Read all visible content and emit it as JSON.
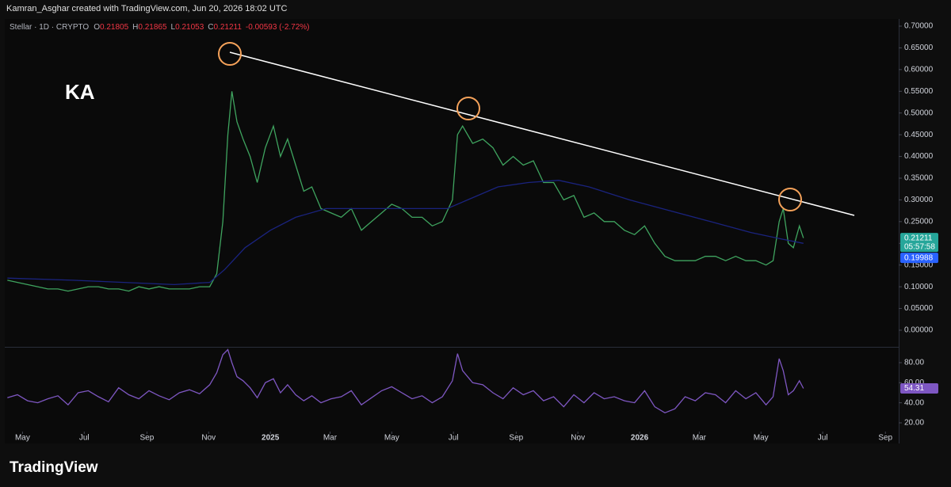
{
  "header": {
    "attribution": "Kamran_Asghar created with TradingView.com, Jun 20, 2026 18:02 UTC"
  },
  "legend": {
    "symbol": "Stellar · 1D · CRYPTO",
    "ohlc": [
      {
        "label": "O",
        "value": "0.21805"
      },
      {
        "label": "H",
        "value": "0.21865"
      },
      {
        "label": "L",
        "value": "0.21053"
      },
      {
        "label": "C",
        "value": "0.21211"
      }
    ],
    "change": "-0.00593 (-2.72%)"
  },
  "watermark": "KA",
  "footer": {
    "brand": "TradingView"
  },
  "chart_data": [
    {
      "type": "line",
      "xlim": [
        -16,
        863
      ],
      "ylim": [
        -0.0365,
        0.7146
      ],
      "yticks": [
        {
          "value": 0,
          "label": "0.00000"
        },
        {
          "value": 0.05,
          "label": "0.05000"
        },
        {
          "value": 0.1,
          "label": "0.10000"
        },
        {
          "value": 0.15,
          "label": "0.15000"
        },
        {
          "value": 0.2,
          "label": "0.20000"
        },
        {
          "value": 0.25,
          "label": "0.25000"
        },
        {
          "value": 0.3,
          "label": "0.30000"
        },
        {
          "value": 0.35,
          "label": "0.35000"
        },
        {
          "value": 0.4,
          "label": "0.40000"
        },
        {
          "value": 0.45,
          "label": "0.45000"
        },
        {
          "value": 0.5,
          "label": "0.50000"
        },
        {
          "value": 0.55,
          "label": "0.55000"
        },
        {
          "value": 0.6,
          "label": "0.60000"
        },
        {
          "value": 0.65,
          "label": "0.65000"
        },
        {
          "value": 0.7,
          "label": "0.70000"
        }
      ],
      "series": [
        {
          "color": "#3fa45f",
          "x": [
            -15,
            -5,
            5,
            15,
            25,
            35,
            45,
            55,
            65,
            75,
            85,
            95,
            105,
            115,
            125,
            135,
            145,
            155,
            165,
            175,
            185,
            192,
            198,
            203,
            207,
            212,
            218,
            225,
            232,
            240,
            248,
            255,
            262,
            270,
            278,
            286,
            295,
            305,
            315,
            325,
            335,
            345,
            355,
            365,
            375,
            385,
            395,
            405,
            415,
            425,
            430,
            435,
            445,
            455,
            465,
            475,
            485,
            495,
            505,
            515,
            525,
            535,
            545,
            555,
            565,
            575,
            585,
            595,
            605,
            615,
            625,
            635,
            645,
            655,
            665,
            675,
            685,
            695,
            705,
            715,
            725,
            735,
            742,
            748,
            752,
            757,
            762,
            768,
            772
          ],
          "values": [
            0.115,
            0.11,
            0.105,
            0.1,
            0.095,
            0.095,
            0.09,
            0.095,
            0.1,
            0.1,
            0.095,
            0.095,
            0.09,
            0.1,
            0.095,
            0.1,
            0.095,
            0.095,
            0.095,
            0.1,
            0.1,
            0.13,
            0.25,
            0.45,
            0.55,
            0.48,
            0.44,
            0.4,
            0.34,
            0.42,
            0.47,
            0.4,
            0.44,
            0.38,
            0.32,
            0.33,
            0.28,
            0.27,
            0.26,
            0.28,
            0.23,
            0.25,
            0.27,
            0.29,
            0.28,
            0.26,
            0.26,
            0.24,
            0.25,
            0.3,
            0.45,
            0.47,
            0.43,
            0.44,
            0.42,
            0.38,
            0.4,
            0.38,
            0.39,
            0.34,
            0.34,
            0.3,
            0.31,
            0.26,
            0.27,
            0.25,
            0.25,
            0.23,
            0.22,
            0.24,
            0.2,
            0.17,
            0.16,
            0.16,
            0.16,
            0.17,
            0.17,
            0.16,
            0.17,
            0.16,
            0.16,
            0.15,
            0.16,
            0.25,
            0.28,
            0.2,
            0.19,
            0.24,
            0.21211
          ]
        },
        {
          "color": "#1a237e",
          "x": [
            -15,
            50,
            100,
            150,
            185,
            200,
            220,
            245,
            270,
            300,
            340,
            380,
            420,
            440,
            470,
            500,
            530,
            560,
            600,
            640,
            680,
            720,
            750,
            772
          ],
          "values": [
            0.12,
            0.115,
            0.11,
            0.105,
            0.11,
            0.14,
            0.19,
            0.23,
            0.26,
            0.28,
            0.28,
            0.28,
            0.28,
            0.3,
            0.33,
            0.34,
            0.345,
            0.33,
            0.3,
            0.275,
            0.25,
            0.225,
            0.21,
            0.19988
          ]
        }
      ],
      "price_tags": [
        {
          "value": 0.21211,
          "label": "0.21211",
          "detail": "05:57:58",
          "color": "#26a69a"
        },
        {
          "value": 0.19988,
          "label": "0.19988",
          "color": "#2962ff"
        }
      ]
    },
    {
      "type": "line",
      "xlim": [
        -16,
        863
      ],
      "ylim": [
        11.3,
        94.2
      ],
      "yticks": [
        {
          "value": 20,
          "label": "20.00"
        },
        {
          "value": 40,
          "label": "40.00"
        },
        {
          "value": 60,
          "label": "60.00"
        },
        {
          "value": 80,
          "label": "80.00"
        }
      ],
      "xticks": [
        {
          "value": 0,
          "label": "May"
        },
        {
          "value": 61,
          "label": "Jul"
        },
        {
          "value": 123,
          "label": "Sep"
        },
        {
          "value": 184,
          "label": "Nov"
        },
        {
          "value": 245,
          "label": "2025"
        },
        {
          "value": 304,
          "label": "Mar"
        },
        {
          "value": 365,
          "label": "May"
        },
        {
          "value": 426,
          "label": "Jul"
        },
        {
          "value": 488,
          "label": "Sep"
        },
        {
          "value": 549,
          "label": "Nov"
        },
        {
          "value": 610,
          "label": "2026"
        },
        {
          "value": 669,
          "label": "Mar"
        },
        {
          "value": 730,
          "label": "May"
        },
        {
          "value": 791,
          "label": "Jul"
        },
        {
          "value": 853,
          "label": "Sep"
        }
      ],
      "series": [
        {
          "color": "#7e57c2",
          "x": [
            -15,
            -5,
            5,
            15,
            25,
            35,
            45,
            55,
            65,
            75,
            85,
            95,
            105,
            115,
            125,
            135,
            145,
            155,
            165,
            175,
            185,
            192,
            198,
            203,
            207,
            212,
            218,
            225,
            232,
            240,
            248,
            255,
            262,
            270,
            278,
            286,
            295,
            305,
            315,
            325,
            335,
            345,
            355,
            365,
            375,
            385,
            395,
            405,
            415,
            425,
            430,
            435,
            445,
            455,
            465,
            475,
            485,
            495,
            505,
            515,
            525,
            535,
            545,
            555,
            565,
            575,
            585,
            595,
            605,
            615,
            625,
            635,
            645,
            655,
            665,
            675,
            685,
            695,
            705,
            715,
            725,
            735,
            742,
            748,
            752,
            757,
            762,
            768,
            772
          ],
          "values": [
            45,
            48,
            42,
            40,
            44,
            47,
            38,
            50,
            52,
            46,
            41,
            55,
            48,
            44,
            52,
            47,
            43,
            50,
            53,
            49,
            58,
            70,
            88,
            93,
            80,
            66,
            62,
            55,
            45,
            60,
            64,
            50,
            58,
            48,
            42,
            47,
            40,
            44,
            46,
            52,
            38,
            45,
            52,
            56,
            50,
            44,
            47,
            40,
            46,
            62,
            89,
            72,
            60,
            58,
            50,
            44,
            55,
            48,
            52,
            42,
            46,
            36,
            48,
            40,
            50,
            44,
            46,
            42,
            40,
            52,
            36,
            30,
            34,
            46,
            42,
            50,
            48,
            40,
            52,
            44,
            50,
            38,
            46,
            84,
            72,
            48,
            52,
            62,
            54.31
          ]
        }
      ],
      "price_tags": [
        {
          "value": 54.31,
          "label": "54.31",
          "color": "#7e57c2"
        }
      ]
    }
  ]
}
